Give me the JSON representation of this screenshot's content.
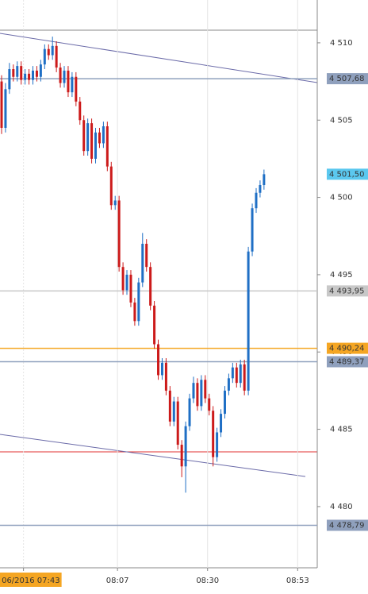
{
  "chart_data": {
    "type": "candlestick",
    "x": [
      "07:37",
      "07:38",
      "07:39",
      "07:40",
      "07:41",
      "07:42",
      "07:43",
      "07:44",
      "07:45",
      "07:46",
      "07:47",
      "07:48",
      "07:49",
      "07:50",
      "07:51",
      "07:52",
      "07:53",
      "07:54",
      "07:55",
      "07:56",
      "07:57",
      "07:58",
      "07:59",
      "08:00",
      "08:01",
      "08:02",
      "08:03",
      "08:04",
      "08:05",
      "08:06",
      "08:07",
      "08:08",
      "08:09",
      "08:10",
      "08:11",
      "08:12",
      "08:13",
      "08:14",
      "08:15",
      "08:16",
      "08:17",
      "08:18",
      "08:19",
      "08:20",
      "08:21",
      "08:22",
      "08:23",
      "08:24",
      "08:25",
      "08:26",
      "08:27",
      "08:28",
      "08:29",
      "08:30",
      "08:31",
      "08:32",
      "08:33",
      "08:34",
      "08:35",
      "08:36",
      "08:37",
      "08:38",
      "08:39",
      "08:40",
      "08:41",
      "08:42",
      "08:43",
      "08:44"
    ],
    "open": [
      4507.5,
      4504.5,
      4507.0,
      4508.3,
      4507.8,
      4508.5,
      4507.6,
      4508.0,
      4507.6,
      4508.2,
      4507.8,
      4508.6,
      4509.6,
      4509.2,
      4509.8,
      4508.4,
      4507.4,
      4508.2,
      4506.8,
      4507.8,
      4506.2,
      4505.0,
      4503.0,
      4504.8,
      4502.5,
      4504.2,
      4503.5,
      4504.6,
      4502.0,
      4499.5,
      4499.8,
      4495.5,
      4494.0,
      4495.0,
      4493.2,
      4492.0,
      4494.5,
      4497.0,
      4495.5,
      4493.0,
      4490.5,
      4488.5,
      4489.3,
      4487.5,
      4485.5,
      4486.8,
      4484.0,
      4482.6,
      4485.2,
      4487.0,
      4488.0,
      4486.5,
      4488.2,
      4487.0,
      4486.2,
      4483.2,
      4484.8,
      4486.0,
      4487.5,
      4488.3,
      4489.0,
      4488.0,
      4489.2,
      4487.5,
      4496.5,
      4499.3,
      4500.3,
      4500.8
    ],
    "high": [
      4507.9,
      4507.4,
      4508.7,
      4508.6,
      4508.8,
      4508.8,
      4508.3,
      4508.3,
      4508.5,
      4508.5,
      4508.9,
      4509.9,
      4509.9,
      4510.4,
      4510.1,
      4508.7,
      4508.5,
      4508.5,
      4508.1,
      4508.1,
      4506.5,
      4505.3,
      4505.1,
      4505.1,
      4504.5,
      4504.5,
      4504.9,
      4504.9,
      4502.3,
      4500.1,
      4500.1,
      4495.8,
      4495.3,
      4495.3,
      4493.5,
      4494.8,
      4497.7,
      4497.3,
      4495.8,
      4493.3,
      4490.8,
      4489.6,
      4489.6,
      4487.8,
      4487.1,
      4487.1,
      4484.3,
      4485.5,
      4487.3,
      4488.4,
      4488.3,
      4488.5,
      4488.5,
      4487.3,
      4486.5,
      4485.1,
      4486.3,
      4487.8,
      4488.6,
      4489.3,
      4489.3,
      4489.5,
      4489.5,
      4496.8,
      4499.6,
      4500.6,
      4501.1,
      4501.8
    ],
    "low": [
      4504.1,
      4504.2,
      4506.7,
      4507.5,
      4507.5,
      4507.3,
      4507.3,
      4507.3,
      4507.3,
      4507.5,
      4507.5,
      4508.3,
      4508.9,
      4508.9,
      4508.1,
      4507.1,
      4507.1,
      4506.5,
      4506.5,
      4505.9,
      4504.7,
      4502.7,
      4502.7,
      4502.2,
      4502.2,
      4503.2,
      4503.2,
      4501.7,
      4499.2,
      4499.2,
      4495.2,
      4493.7,
      4493.7,
      4492.9,
      4491.7,
      4491.7,
      4494.2,
      4495.2,
      4492.7,
      4490.2,
      4488.2,
      4488.2,
      4487.2,
      4485.2,
      4485.2,
      4483.7,
      4481.9,
      4480.9,
      4484.9,
      4486.7,
      4486.2,
      4486.2,
      4486.7,
      4485.9,
      4482.6,
      4482.9,
      4484.5,
      4485.7,
      4487.2,
      4488.0,
      4487.7,
      4487.7,
      4487.2,
      4487.2,
      4496.2,
      4499.0,
      4500.0,
      4500.5
    ],
    "close": [
      4504.5,
      4507.0,
      4508.3,
      4507.8,
      4508.5,
      4507.6,
      4508.0,
      4507.6,
      4508.2,
      4507.8,
      4508.6,
      4509.6,
      4509.2,
      4509.8,
      4508.4,
      4507.4,
      4508.2,
      4506.8,
      4507.8,
      4506.2,
      4505.0,
      4503.0,
      4504.8,
      4502.5,
      4504.2,
      4503.5,
      4504.6,
      4502.0,
      4499.5,
      4499.8,
      4495.5,
      4494.0,
      4495.0,
      4493.2,
      4492.0,
      4494.5,
      4497.0,
      4495.5,
      4493.0,
      4490.5,
      4488.5,
      4489.3,
      4487.5,
      4485.5,
      4486.8,
      4484.0,
      4482.6,
      4485.2,
      4487.0,
      4488.0,
      4486.5,
      4488.2,
      4487.0,
      4486.2,
      4483.2,
      4484.8,
      4486.0,
      4487.5,
      4488.3,
      4489.0,
      4488.0,
      4489.2,
      4487.5,
      4496.5,
      4499.3,
      4500.3,
      4500.8,
      4501.5
    ],
    "up_color": "#1f6fc5",
    "down_color": "#cc1a1a",
    "ylim": [
      4476.04,
      4512.77
    ],
    "yticks": [
      {
        "value": 4480,
        "label": "4 480"
      },
      {
        "value": 4485,
        "label": "4 485"
      },
      {
        "value": 4490,
        "label": "4 490"
      },
      {
        "value": 4495,
        "label": "4 495"
      },
      {
        "value": 4500,
        "label": "4 500"
      },
      {
        "value": 4505,
        "label": "4 505"
      },
      {
        "value": 4510,
        "label": "4 510"
      }
    ],
    "xlim": [
      "07:37",
      "08:58"
    ],
    "xticks": [
      {
        "value": "07:43",
        "label": "06/2016 07:43"
      },
      "08:07",
      "08:30",
      "08:53"
    ],
    "levels": [
      {
        "value": 4507.68,
        "label": "4 507,68",
        "color": "#8fa0bd",
        "line": true
      },
      {
        "value": 4501.5,
        "label": "4 501,50",
        "color": "#5bc8ef",
        "line": false
      },
      {
        "value": 4493.95,
        "label": "4 493,95",
        "color": "#c8c8c8",
        "line": true
      },
      {
        "value": 4490.24,
        "label": "4 490,24",
        "color": "#f5a623",
        "line": true
      },
      {
        "value": 4489.37,
        "label": "4 489,37",
        "color": "#8fa0bd",
        "line": true
      },
      {
        "value": 4478.79,
        "label": "4 478,79",
        "color": "#8fa0bd",
        "line": true
      }
    ]
  }
}
